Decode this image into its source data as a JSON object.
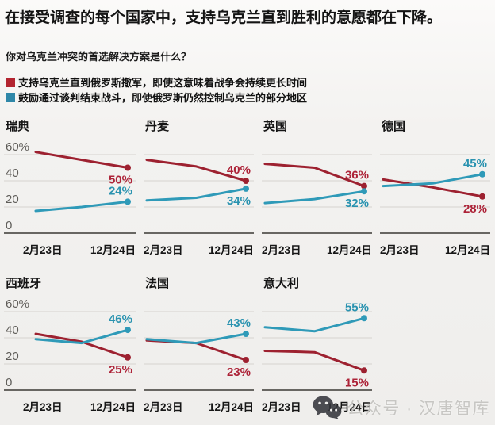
{
  "title": "在接受调查的每个国家中，支持乌克兰直到胜利的意愿都在下降。",
  "subtitle": "你对乌克兰冲突的首选解决方案是什么？",
  "legend": {
    "red_label": "支持乌克兰直到俄罗斯撤军，即使这意味着战争会持续更长时间",
    "blue_label": "鼓励通过谈判结束战斗，即使俄罗斯仍然控制乌克兰的部分地区"
  },
  "colors": {
    "red": "#9d2130",
    "red_label": "#ad2338",
    "blue": "#2f9ab8",
    "blue_label": "#2a93b0",
    "grid": "#d6d3cf",
    "axis": "#55524e",
    "tick_text": "#5f5d59"
  },
  "watermark": {
    "icon": "wechat-icon",
    "text": "公众号 · 汉唐智库"
  },
  "chart_data": {
    "type": "line",
    "x_tick_labels": [
      "2月23日",
      "12月24日"
    ],
    "points_per_series": "start / mid / end (only start and end dates are labeled)",
    "y_ticks": [
      {
        "label": "60%",
        "v": 60
      },
      {
        "label": "40",
        "v": 40
      },
      {
        "label": "20",
        "v": 20
      },
      {
        "label": "0",
        "v": 0
      }
    ],
    "ylim": [
      0,
      70
    ],
    "series_names": {
      "red": "支持乌克兰直到俄罗斯撤军",
      "blue": "鼓励通过谈判结束战斗"
    },
    "charts": [
      {
        "country": "瑞典",
        "row": 1,
        "show_y_axis": true,
        "red": {
          "values": [
            62,
            56,
            50
          ],
          "end_label": "50%",
          "label_side": "below"
        },
        "blue": {
          "values": [
            17,
            20,
            24
          ],
          "end_label": "24%",
          "label_side": "above"
        }
      },
      {
        "country": "丹麦",
        "row": 1,
        "show_y_axis": false,
        "red": {
          "values": [
            56,
            51,
            40
          ],
          "end_label": "40%",
          "label_side": "above"
        },
        "blue": {
          "values": [
            25,
            27,
            34
          ],
          "end_label": "34%",
          "label_side": "below"
        }
      },
      {
        "country": "英国",
        "row": 1,
        "show_y_axis": false,
        "red": {
          "values": [
            53,
            50,
            36
          ],
          "end_label": "36%",
          "label_side": "above"
        },
        "blue": {
          "values": [
            23,
            26,
            32
          ],
          "end_label": "32%",
          "label_side": "below"
        }
      },
      {
        "country": "德国",
        "row": 1,
        "show_y_axis": false,
        "red": {
          "values": [
            41,
            35,
            28
          ],
          "end_label": "28%",
          "label_side": "below"
        },
        "blue": {
          "values": [
            36,
            38,
            45
          ],
          "end_label": "45%",
          "label_side": "above"
        }
      },
      {
        "country": "西班牙",
        "row": 2,
        "show_y_axis": true,
        "red": {
          "values": [
            43,
            37,
            25
          ],
          "end_label": "25%",
          "label_side": "below"
        },
        "blue": {
          "values": [
            39,
            36,
            46
          ],
          "end_label": "46%",
          "label_side": "above"
        }
      },
      {
        "country": "法国",
        "row": 2,
        "show_y_axis": false,
        "red": {
          "values": [
            38,
            36,
            23
          ],
          "end_label": "23%",
          "label_side": "below"
        },
        "blue": {
          "values": [
            39,
            36,
            43
          ],
          "end_label": "43%",
          "label_side": "above"
        }
      },
      {
        "country": "意大利",
        "row": 2,
        "show_y_axis": false,
        "red": {
          "values": [
            30,
            29,
            15
          ],
          "end_label": "15%",
          "label_side": "below"
        },
        "blue": {
          "values": [
            48,
            45,
            55
          ],
          "end_label": "55%",
          "label_side": "above"
        }
      }
    ]
  }
}
